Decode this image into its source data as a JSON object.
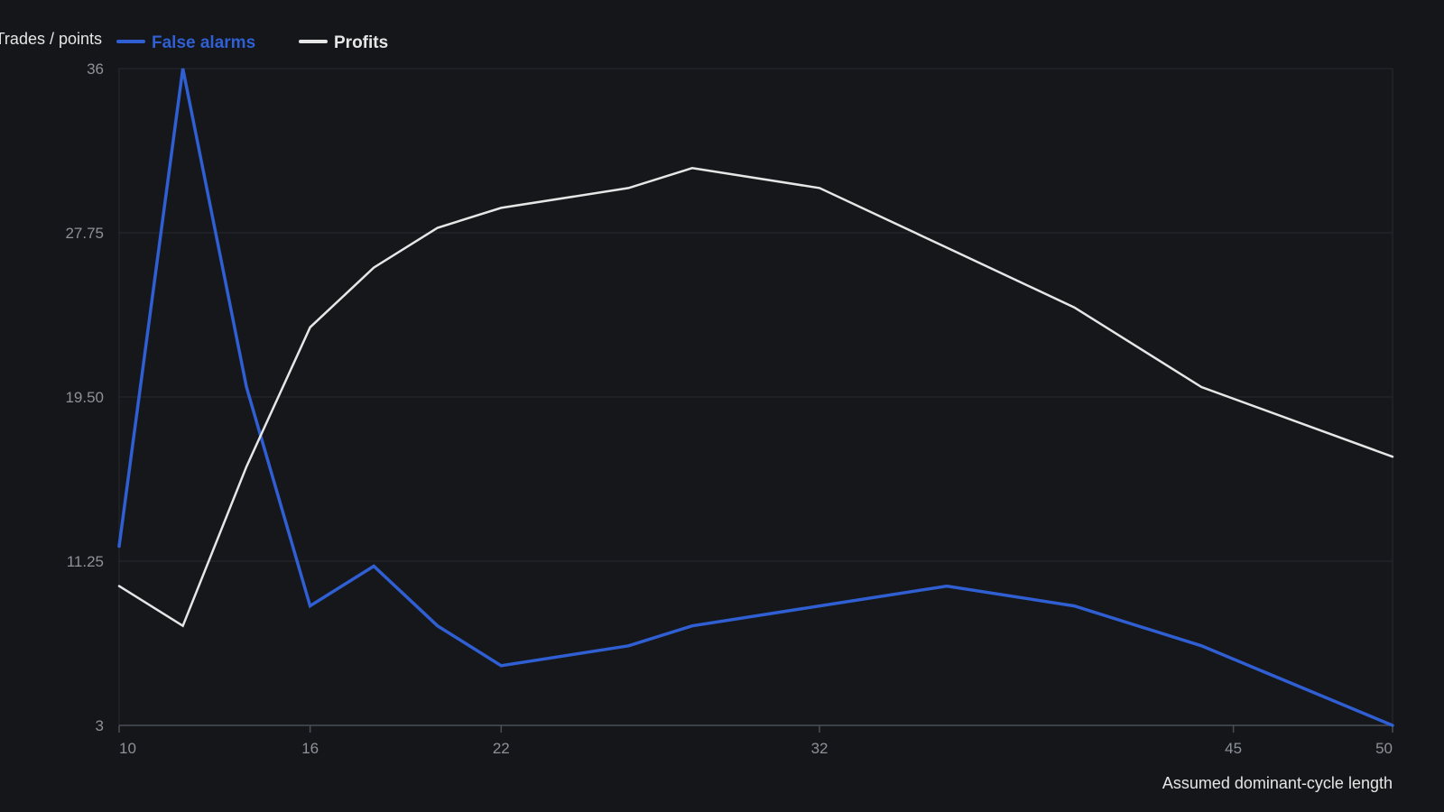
{
  "chart_data": {
    "type": "line",
    "ylabel": "Trades / points",
    "xlabel": "Assumed dominant-cycle length",
    "x": [
      10,
      12,
      14,
      16,
      18,
      20,
      22,
      26,
      28,
      32,
      36,
      40,
      44,
      50
    ],
    "x_ticks": [
      10,
      16,
      22,
      32,
      45,
      50
    ],
    "xlim": [
      10,
      50
    ],
    "y_ticks": [
      "3",
      "11.25",
      "19.50",
      "27.75",
      "36"
    ],
    "ylim": [
      3,
      36
    ],
    "grid": true,
    "legend_position": "top-left",
    "series": [
      {
        "name": "False alarms",
        "color": "#2f5fd3",
        "values": [
          12,
          36,
          20,
          9,
          11,
          8,
          6,
          7,
          8,
          9,
          10,
          9,
          7,
          3
        ]
      },
      {
        "name": "Profits",
        "color": "#e6e6e6",
        "values": [
          10,
          8,
          16,
          23,
          26,
          28,
          29,
          30,
          31,
          30,
          27,
          24,
          20,
          16.5
        ]
      }
    ]
  }
}
